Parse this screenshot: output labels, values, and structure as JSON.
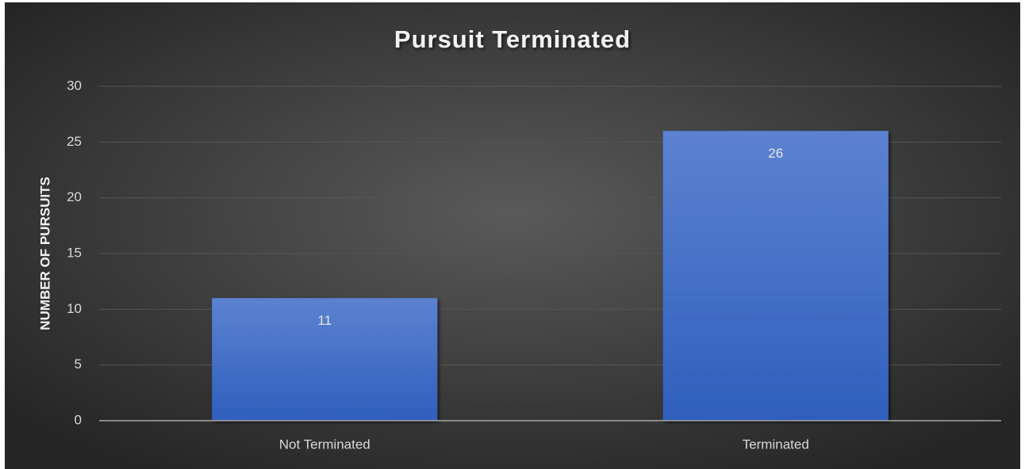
{
  "chart_data": {
    "type": "bar",
    "title": "Pursuit Terminated",
    "y_label": "NUMBER OF PURSUITS",
    "categories": [
      "Not Terminated",
      "Terminated"
    ],
    "values": [
      11,
      26
    ],
    "color": "#4472c4",
    "ylim": [
      0,
      30
    ],
    "yticks": [
      0,
      5,
      10,
      15,
      20,
      25,
      30
    ],
    "grid": true
  }
}
